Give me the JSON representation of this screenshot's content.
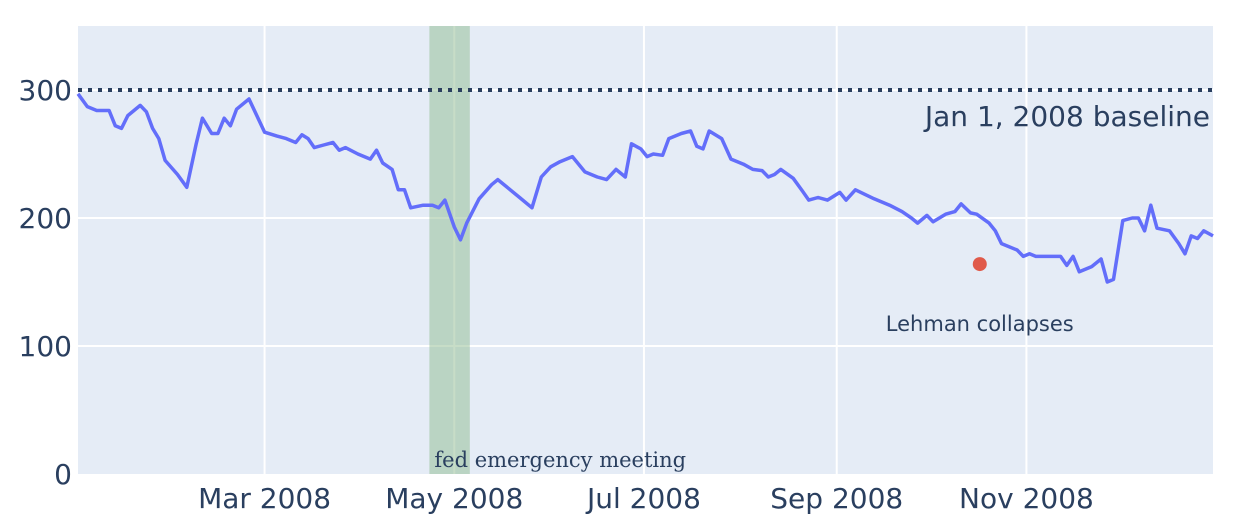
{
  "chart_data": {
    "type": "line",
    "title": "",
    "xlabel": "",
    "ylabel": "",
    "x_range": [
      "2008-01-01",
      "2008-12-31"
    ],
    "ylim": [
      0,
      350
    ],
    "grid": true,
    "x_ticks": [
      {
        "date": "2008-03-01",
        "label": "Mar 2008"
      },
      {
        "date": "2008-05-01",
        "label": "May 2008"
      },
      {
        "date": "2008-07-01",
        "label": "Jul 2008"
      },
      {
        "date": "2008-09-01",
        "label": "Sep 2008"
      },
      {
        "date": "2008-11-01",
        "label": "Nov 2008"
      }
    ],
    "y_ticks": [
      0,
      100,
      200,
      300
    ],
    "series": [
      {
        "color": "#636efa",
        "points": [
          [
            "2008-01-01",
            297
          ],
          [
            "2008-01-04",
            287
          ],
          [
            "2008-01-07",
            284
          ],
          [
            "2008-01-11",
            284
          ],
          [
            "2008-01-13",
            272
          ],
          [
            "2008-01-15",
            270
          ],
          [
            "2008-01-17",
            280
          ],
          [
            "2008-01-21",
            288
          ],
          [
            "2008-01-23",
            283
          ],
          [
            "2008-01-25",
            270
          ],
          [
            "2008-01-27",
            262
          ],
          [
            "2008-01-29",
            245
          ],
          [
            "2008-02-02",
            234
          ],
          [
            "2008-02-05",
            224
          ],
          [
            "2008-02-08",
            258
          ],
          [
            "2008-02-10",
            278
          ],
          [
            "2008-02-13",
            266
          ],
          [
            "2008-02-15",
            266
          ],
          [
            "2008-02-17",
            278
          ],
          [
            "2008-02-19",
            272
          ],
          [
            "2008-02-21",
            285
          ],
          [
            "2008-02-25",
            293
          ],
          [
            "2008-03-01",
            267
          ],
          [
            "2008-03-05",
            264
          ],
          [
            "2008-03-08",
            262
          ],
          [
            "2008-03-11",
            259
          ],
          [
            "2008-03-13",
            265
          ],
          [
            "2008-03-15",
            262
          ],
          [
            "2008-03-17",
            255
          ],
          [
            "2008-03-20",
            257
          ],
          [
            "2008-03-23",
            259
          ],
          [
            "2008-03-25",
            253
          ],
          [
            "2008-03-27",
            255
          ],
          [
            "2008-03-31",
            250
          ],
          [
            "2008-04-04",
            246
          ],
          [
            "2008-04-06",
            253
          ],
          [
            "2008-04-08",
            243
          ],
          [
            "2008-04-11",
            238
          ],
          [
            "2008-04-13",
            222
          ],
          [
            "2008-04-15",
            222
          ],
          [
            "2008-04-17",
            208
          ],
          [
            "2008-04-21",
            210
          ],
          [
            "2008-04-24",
            210
          ],
          [
            "2008-04-26",
            208
          ],
          [
            "2008-04-28",
            214
          ],
          [
            "2008-05-01",
            193
          ],
          [
            "2008-05-03",
            183
          ],
          [
            "2008-05-05",
            196
          ],
          [
            "2008-05-09",
            215
          ],
          [
            "2008-05-13",
            226
          ],
          [
            "2008-05-15",
            230
          ],
          [
            "2008-05-22",
            216
          ],
          [
            "2008-05-26",
            208
          ],
          [
            "2008-05-29",
            232
          ],
          [
            "2008-06-01",
            240
          ],
          [
            "2008-06-04",
            244
          ],
          [
            "2008-06-08",
            248
          ],
          [
            "2008-06-12",
            236
          ],
          [
            "2008-06-16",
            232
          ],
          [
            "2008-06-19",
            230
          ],
          [
            "2008-06-22",
            238
          ],
          [
            "2008-06-25",
            232
          ],
          [
            "2008-06-27",
            258
          ],
          [
            "2008-06-30",
            254
          ],
          [
            "2008-07-02",
            248
          ],
          [
            "2008-07-04",
            250
          ],
          [
            "2008-07-07",
            249
          ],
          [
            "2008-07-09",
            262
          ],
          [
            "2008-07-13",
            266
          ],
          [
            "2008-07-16",
            268
          ],
          [
            "2008-07-18",
            256
          ],
          [
            "2008-07-20",
            254
          ],
          [
            "2008-07-22",
            268
          ],
          [
            "2008-07-26",
            262
          ],
          [
            "2008-07-29",
            246
          ],
          [
            "2008-08-02",
            242
          ],
          [
            "2008-08-05",
            238
          ],
          [
            "2008-08-08",
            237
          ],
          [
            "2008-08-10",
            232
          ],
          [
            "2008-08-12",
            234
          ],
          [
            "2008-08-14",
            238
          ],
          [
            "2008-08-18",
            231
          ],
          [
            "2008-08-21",
            221
          ],
          [
            "2008-08-23",
            214
          ],
          [
            "2008-08-26",
            216
          ],
          [
            "2008-08-29",
            214
          ],
          [
            "2008-09-02",
            220
          ],
          [
            "2008-09-04",
            214
          ],
          [
            "2008-09-07",
            222
          ],
          [
            "2008-09-13",
            215
          ],
          [
            "2008-09-18",
            210
          ],
          [
            "2008-09-22",
            205
          ],
          [
            "2008-09-25",
            200
          ],
          [
            "2008-09-27",
            196
          ],
          [
            "2008-09-30",
            202
          ],
          [
            "2008-10-02",
            197
          ],
          [
            "2008-10-06",
            203
          ],
          [
            "2008-10-09",
            205
          ],
          [
            "2008-10-11",
            211
          ],
          [
            "2008-10-14",
            204
          ],
          [
            "2008-10-16",
            203
          ],
          [
            "2008-10-20",
            196
          ],
          [
            "2008-10-22",
            190
          ],
          [
            "2008-10-24",
            180
          ],
          [
            "2008-10-29",
            175
          ],
          [
            "2008-10-31",
            170
          ],
          [
            "2008-11-02",
            172
          ],
          [
            "2008-11-04",
            170
          ],
          [
            "2008-11-08",
            170
          ],
          [
            "2008-11-12",
            170
          ],
          [
            "2008-11-14",
            163
          ],
          [
            "2008-11-16",
            170
          ],
          [
            "2008-11-18",
            158
          ],
          [
            "2008-11-22",
            162
          ],
          [
            "2008-11-25",
            168
          ],
          [
            "2008-11-27",
            150
          ],
          [
            "2008-11-29",
            152
          ],
          [
            "2008-12-02",
            198
          ],
          [
            "2008-12-05",
            200
          ],
          [
            "2008-12-07",
            200
          ],
          [
            "2008-12-09",
            190
          ],
          [
            "2008-12-11",
            210
          ],
          [
            "2008-12-13",
            192
          ],
          [
            "2008-12-17",
            190
          ],
          [
            "2008-12-20",
            180
          ],
          [
            "2008-12-22",
            172
          ],
          [
            "2008-12-24",
            186
          ],
          [
            "2008-12-26",
            184
          ],
          [
            "2008-12-28",
            190
          ],
          [
            "2008-12-31",
            186
          ]
        ]
      }
    ],
    "baseline": {
      "y": 300,
      "label": "Jan 1, 2008 baseline",
      "color": "#2a3f5f",
      "style": "dotted"
    },
    "shaded_region": {
      "x0": "2008-04-23",
      "x1": "2008-05-06",
      "label": "fed emergency meeting",
      "color": "#8fbc8f"
    },
    "marker": {
      "x": "2008-10-17",
      "y": 164,
      "label": "Lehman collapses",
      "color": "#e05a4a"
    }
  }
}
